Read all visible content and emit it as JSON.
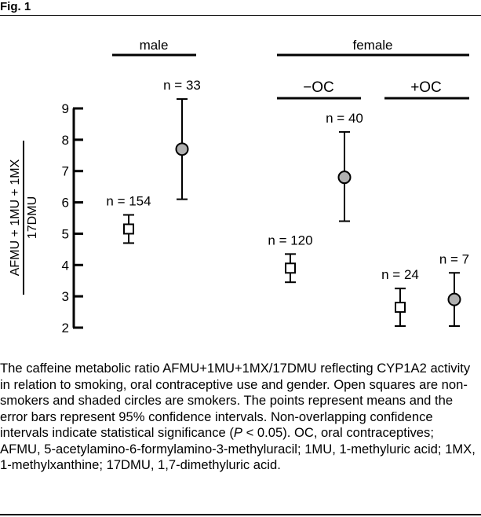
{
  "figure": {
    "label": "Fig. 1"
  },
  "chart_data": {
    "type": "scatter",
    "ylabel_top": "AFMU + 1MU + 1MX",
    "ylabel_bottom": "17DMU",
    "ylim": [
      2,
      9
    ],
    "yticks": [
      "2",
      "3",
      "4",
      "5",
      "6",
      "7",
      "8",
      "9"
    ],
    "group_labels": {
      "male": "male",
      "female": "female",
      "minus_oc": "−OC",
      "plus_oc": "+OC"
    },
    "points": [
      {
        "group": "male",
        "smoker": false,
        "marker": "open-square",
        "mean": 5.15,
        "ci_low": 4.7,
        "ci_high": 5.6,
        "n_label": "n = 154"
      },
      {
        "group": "male",
        "smoker": true,
        "marker": "shaded-circle",
        "mean": 7.7,
        "ci_low": 6.1,
        "ci_high": 9.3,
        "n_label": "n = 33"
      },
      {
        "group": "female −OC",
        "smoker": false,
        "marker": "open-square",
        "mean": 3.9,
        "ci_low": 3.45,
        "ci_high": 4.35,
        "n_label": "n = 120"
      },
      {
        "group": "female −OC",
        "smoker": true,
        "marker": "shaded-circle",
        "mean": 6.8,
        "ci_low": 5.4,
        "ci_high": 8.25,
        "n_label": "n = 40"
      },
      {
        "group": "female +OC",
        "smoker": false,
        "marker": "open-square",
        "mean": 2.65,
        "ci_low": 2.05,
        "ci_high": 3.25,
        "n_label": "n = 24"
      },
      {
        "group": "female +OC",
        "smoker": true,
        "marker": "shaded-circle",
        "mean": 2.9,
        "ci_low": 2.05,
        "ci_high": 3.75,
        "n_label": "n = 7"
      }
    ],
    "colors": {
      "shaded_fill": "#b0b0b0",
      "open_fill": "#ffffff",
      "stroke": "#000000"
    }
  },
  "caption": {
    "part1": "The caffeine metabolic ratio AFMU+1MU+1MX/17DMU reflecting CYP1A2 activity in relation to smoking, oral contraceptive use and gender. Open squares are non-smokers and shaded circles are smokers. The points represent means and the error bars represent 95% confidence intervals. Non-overlapping confidence intervals indicate statistical significance (",
    "p_symbol": "P",
    "part2": " < 0.05). OC, oral contraceptives; AFMU, 5-acetylamino-6-formylamino-3-methyluracil; 1MU, 1-methyluric acid; 1MX, 1-methylxanthine; 17DMU, 1,7-dimethyluric acid."
  }
}
